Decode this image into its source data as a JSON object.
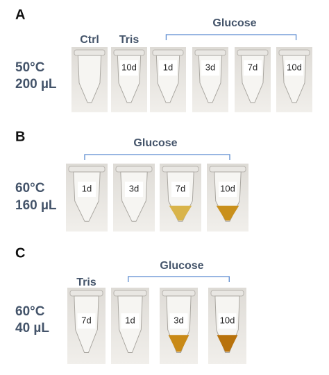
{
  "panels": [
    {
      "letter": "A",
      "condition": [
        "50°C",
        "200 µL"
      ],
      "group_label": "Glucose",
      "tubes": [
        {
          "header": "Ctrl"
        },
        {
          "header": "Tris",
          "label": "10d"
        },
        {
          "label": "1d"
        },
        {
          "label": "3d"
        },
        {
          "label": "7d"
        },
        {
          "label": "10d"
        }
      ]
    },
    {
      "letter": "B",
      "condition": [
        "60°C",
        "160 µL"
      ],
      "group_label": "Glucose",
      "tubes": [
        {
          "label": "1d"
        },
        {
          "label": "3d"
        },
        {
          "label": "7d"
        },
        {
          "label": "10d"
        }
      ]
    },
    {
      "letter": "C",
      "condition": [
        "60°C",
        "40 µL"
      ],
      "group_label": "Glucose",
      "tubes": [
        {
          "header": "Tris",
          "label": "7d"
        },
        {
          "label": "1d"
        },
        {
          "label": "3d"
        },
        {
          "label": "10d"
        }
      ]
    }
  ]
}
